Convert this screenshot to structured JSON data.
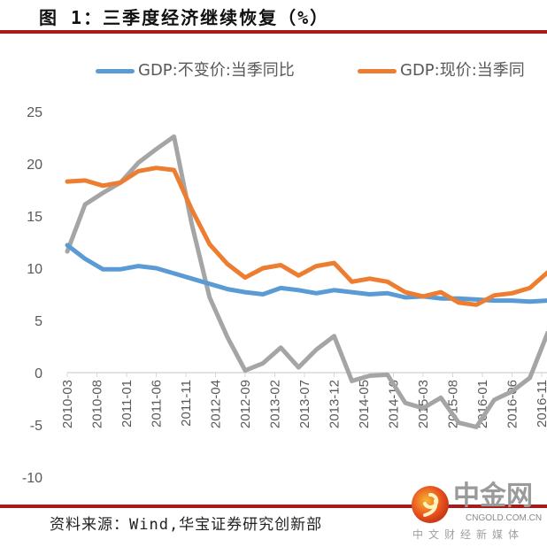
{
  "header": {
    "title": "图 1：三季度经济继续恢复（%）"
  },
  "footer": {
    "source": "资料来源：Wind,华宝证券研究创新部"
  },
  "watermark": {
    "name": "中金网",
    "domain": "CNGOLD.COM.CN",
    "tagline": "中文财经新媒体",
    "icon": "cngold-logo-icon"
  },
  "colors": {
    "rule": "#a31d1d",
    "series_real": "#5b9bd5",
    "series_nominal": "#ed7d31",
    "series_third": "#a5a5a5",
    "axis": "#d9d9d9"
  },
  "chart_data": {
    "type": "line",
    "title": "三季度经济继续恢复（%）",
    "xlabel": "",
    "ylabel": "",
    "ylim": [
      -10,
      25
    ],
    "yticks": [
      "25",
      "20",
      "15",
      "10",
      "5",
      "0",
      "-5",
      "-10"
    ],
    "ytick_values": [
      25,
      20,
      15,
      10,
      5,
      0,
      -5,
      -10
    ],
    "grid": false,
    "legend_position": "top",
    "xtick_labels": [
      "2010-03",
      "2010-08",
      "2011-01",
      "2011-06",
      "2011-11",
      "2012-04",
      "2012-09",
      "2013-02",
      "2013-07",
      "2013-12",
      "2014-05",
      "2014-10",
      "2015-03",
      "2015-08",
      "2016-01",
      "2016-06",
      "2016-11"
    ],
    "x": [
      "2010-03",
      "2010-06",
      "2010-09",
      "2010-12",
      "2011-03",
      "2011-06",
      "2011-09",
      "2011-12",
      "2012-03",
      "2012-06",
      "2012-09",
      "2012-12",
      "2013-03",
      "2013-06",
      "2013-09",
      "2013-12",
      "2014-03",
      "2014-06",
      "2014-09",
      "2014-12",
      "2015-03",
      "2015-06",
      "2015-09",
      "2015-12",
      "2016-03",
      "2016-06",
      "2016-09",
      "2016-12"
    ],
    "series": [
      {
        "name": "GDP:不变价:当季同比",
        "color_key": "series_real",
        "values": [
          12.2,
          10.9,
          9.9,
          9.9,
          10.2,
          10.0,
          9.5,
          9.0,
          8.5,
          8.0,
          7.7,
          7.5,
          8.1,
          7.9,
          7.6,
          7.9,
          7.7,
          7.5,
          7.6,
          7.2,
          7.3,
          7.1,
          7.1,
          7.0,
          6.9,
          6.9,
          6.8,
          6.9
        ]
      },
      {
        "name": "GDP:现价:当季同",
        "color_key": "series_nominal",
        "values": [
          18.3,
          18.4,
          17.9,
          18.2,
          19.3,
          19.6,
          19.4,
          15.6,
          12.3,
          10.4,
          9.1,
          10.0,
          10.3,
          9.3,
          10.2,
          10.5,
          8.7,
          9.0,
          8.7,
          7.7,
          7.3,
          7.7,
          6.7,
          6.5,
          7.4,
          7.6,
          8.1,
          9.6
        ]
      },
      {
        "name": "",
        "color_key": "series_third",
        "values": [
          11.6,
          16.1,
          17.2,
          18.2,
          20.1,
          21.4,
          22.6,
          14.2,
          7.2,
          3.4,
          0.2,
          0.9,
          2.4,
          0.5,
          2.2,
          3.5,
          -0.8,
          -0.3,
          -0.2,
          -2.9,
          -3.4,
          -2.4,
          -4.8,
          -5.2,
          -2.6,
          -1.8,
          -0.5,
          3.8
        ]
      }
    ]
  }
}
